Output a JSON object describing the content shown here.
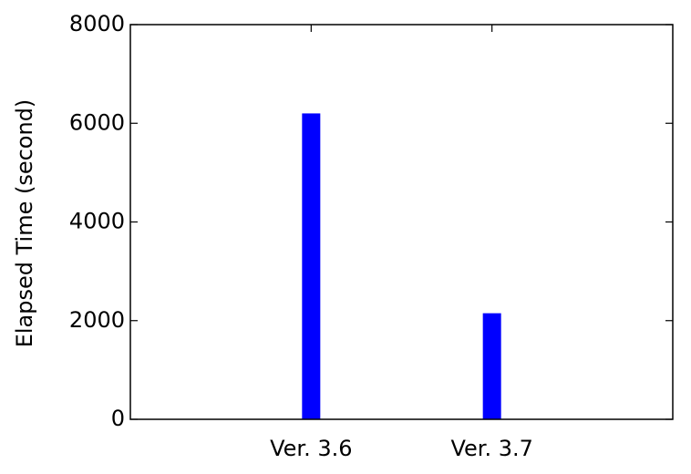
{
  "chart_data": {
    "type": "bar",
    "y_label": "Elapsed Time (second)",
    "categories": [
      "Ver. 3.6",
      "Ver. 3.7"
    ],
    "values": [
      6200,
      2150
    ],
    "color": "#0000ff",
    "ylim": [
      0,
      8000
    ],
    "yticks": [
      0,
      2000,
      4000,
      6000,
      8000
    ]
  }
}
